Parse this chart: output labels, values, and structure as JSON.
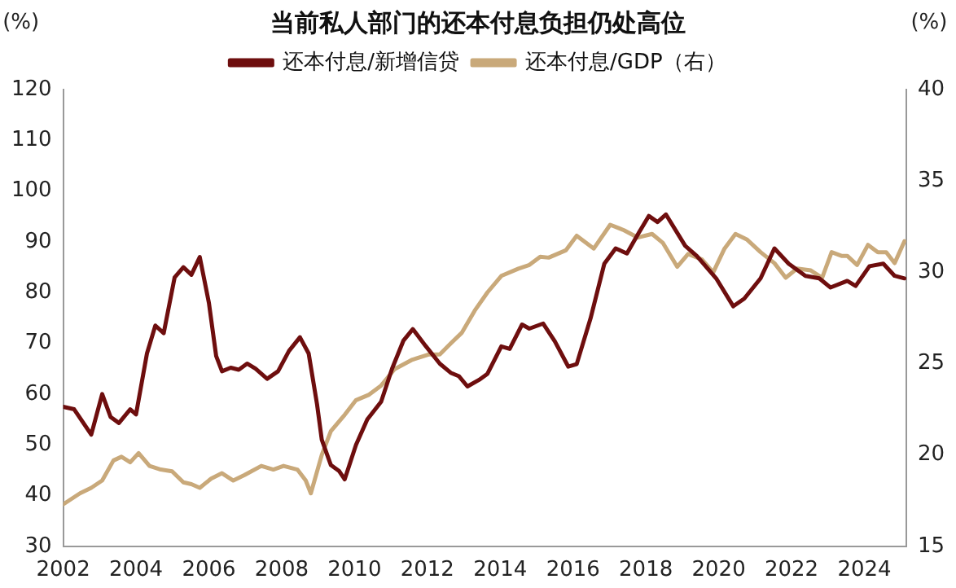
{
  "chart_data": {
    "type": "line",
    "title": "当前私人部门的还本付息负担仍处高位",
    "ylabel": "(%)",
    "y2label": "(%)",
    "xlim": [
      2002,
      2025.15
    ],
    "xticks": [
      2002,
      2004,
      2006,
      2008,
      2010,
      2012,
      2014,
      2016,
      2018,
      2020,
      2022,
      2024
    ],
    "ylim": [
      30,
      120
    ],
    "yticks": [
      30,
      40,
      50,
      60,
      70,
      80,
      90,
      100,
      110,
      120
    ],
    "y2lim": [
      15,
      40
    ],
    "y2ticks": [
      15,
      20,
      25,
      30,
      35,
      40
    ],
    "legend": "top",
    "grid": false,
    "marker": "none",
    "line_style": "solid",
    "series": [
      {
        "name": "还本付息/新增信贷",
        "color": "#6e0e0e",
        "x": [
          2002.0,
          2002.3,
          2002.77,
          2003.07,
          2003.3,
          2003.53,
          2003.84,
          2004.0,
          2004.3,
          2004.53,
          2004.76,
          2005.06,
          2005.3,
          2005.52,
          2005.75,
          2006.0,
          2006.2,
          2006.36,
          2006.6,
          2006.82,
          2007.05,
          2007.28,
          2007.6,
          2007.9,
          2008.2,
          2008.5,
          2008.74,
          2008.97,
          2009.1,
          2009.35,
          2009.58,
          2009.73,
          2010.04,
          2010.35,
          2010.73,
          2011.03,
          2011.34,
          2011.6,
          2011.95,
          2012.34,
          2012.64,
          2012.87,
          2013.1,
          2013.42,
          2013.65,
          2014.03,
          2014.26,
          2014.6,
          2014.8,
          2015.18,
          2015.5,
          2015.87,
          2016.1,
          2016.48,
          2016.86,
          2017.17,
          2017.48,
          2017.8,
          2018.08,
          2018.32,
          2018.55,
          2019.08,
          2019.4,
          2019.93,
          2020.4,
          2020.7,
          2021.15,
          2021.53,
          2021.92,
          2022.38,
          2022.76,
          2023.07,
          2023.53,
          2023.76,
          2024.14,
          2024.52,
          2024.83,
          2025.1
        ],
        "values": [
          57.5,
          57,
          52,
          60,
          55.5,
          54.3,
          57,
          56,
          68,
          73.5,
          72,
          83,
          85,
          83.5,
          87,
          78,
          67.5,
          64.5,
          65.2,
          64.8,
          66,
          65,
          63,
          64.5,
          68.5,
          71.2,
          68,
          58,
          51,
          46,
          44.8,
          43.2,
          50,
          55,
          58.5,
          65,
          70.5,
          72.8,
          69.5,
          66,
          64.2,
          63.5,
          61.5,
          62.8,
          64,
          69.4,
          68.9,
          73.7,
          72.9,
          73.9,
          70.4,
          65.4,
          65.9,
          74.9,
          85.7,
          88.7,
          87.7,
          91.7,
          95.1,
          93.9,
          95.4,
          89.2,
          87.2,
          82.8,
          77.3,
          78.8,
          82.8,
          88.7,
          85.7,
          83.3,
          82.8,
          81,
          82.3,
          81.3,
          85.2,
          85.7,
          83.3,
          82.8
        ]
      },
      {
        "name": "还本付息/GDP（右）",
        "color": "#c9a97a",
        "axis": "y2",
        "x": [
          2002.0,
          2002.46,
          2002.77,
          2003.07,
          2003.38,
          2003.6,
          2003.84,
          2004.07,
          2004.37,
          2004.68,
          2004.99,
          2005.3,
          2005.52,
          2005.75,
          2006.06,
          2006.36,
          2006.67,
          2006.98,
          2007.44,
          2007.77,
          2008.05,
          2008.43,
          2008.66,
          2008.8,
          2009.1,
          2009.35,
          2009.73,
          2010.04,
          2010.4,
          2010.73,
          2011.1,
          2011.57,
          2012.03,
          2012.34,
          2012.64,
          2012.95,
          2013.3,
          2013.65,
          2014.03,
          2014.5,
          2014.8,
          2015.1,
          2015.33,
          2015.8,
          2016.1,
          2016.57,
          2017.02,
          2017.4,
          2017.78,
          2018.17,
          2018.47,
          2018.86,
          2019.16,
          2019.54,
          2019.85,
          2020.16,
          2020.46,
          2020.77,
          2021.15,
          2021.53,
          2021.84,
          2022.15,
          2022.53,
          2022.84,
          2023.1,
          2023.37,
          2023.53,
          2023.8,
          2024.1,
          2024.37,
          2024.6,
          2024.83,
          2025.1
        ],
        "values": [
          17.3,
          17.9,
          18.2,
          18.6,
          19.7,
          19.9,
          19.6,
          20.1,
          19.4,
          19.2,
          19.1,
          18.5,
          18.4,
          18.2,
          18.7,
          19.0,
          18.6,
          18.9,
          19.4,
          19.2,
          19.4,
          19.2,
          18.6,
          17.9,
          20.0,
          21.3,
          22.2,
          23.0,
          23.3,
          23.8,
          24.7,
          25.2,
          25.5,
          25.5,
          26.1,
          26.7,
          27.9,
          28.9,
          29.8,
          30.2,
          30.4,
          30.85,
          30.8,
          31.2,
          32.0,
          31.3,
          32.6,
          32.3,
          31.9,
          32.1,
          31.6,
          30.3,
          31.0,
          30.7,
          30.0,
          31.3,
          32.1,
          31.8,
          31.1,
          30.5,
          29.7,
          30.2,
          30.1,
          29.7,
          31.1,
          30.9,
          30.9,
          30.4,
          31.5,
          31.1,
          31.1,
          30.5,
          31.7
        ]
      }
    ]
  }
}
